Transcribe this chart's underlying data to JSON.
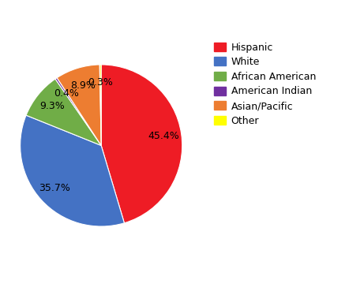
{
  "labels": [
    "Hispanic",
    "White",
    "African American",
    "American Indian",
    "Asian/Pacific",
    "Other"
  ],
  "values": [
    45.4,
    35.7,
    9.3,
    0.4,
    8.9,
    0.3
  ],
  "colors": [
    "#ee1c25",
    "#4472c4",
    "#70ad47",
    "#7030a0",
    "#ed7d31",
    "#ffff00"
  ],
  "autopct_labels": [
    "45.4%",
    "35.7%",
    "9.3%",
    "0.4%",
    "8.9%",
    "0.3%"
  ],
  "startangle": 90,
  "background_color": "#ffffff",
  "pct_fontsize": 9,
  "legend_fontsize": 9
}
